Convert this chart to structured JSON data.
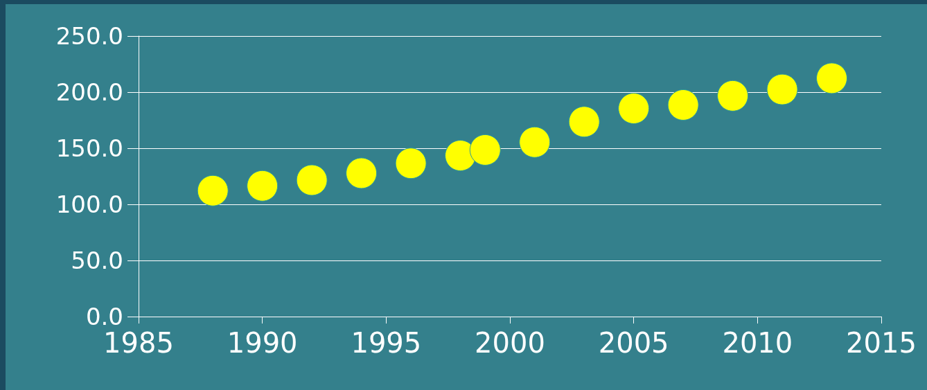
{
  "chart_data": {
    "type": "scatter",
    "x": [
      1988,
      1990,
      1992,
      1994,
      1996,
      1998,
      1999,
      2001,
      2003,
      2005,
      2007,
      2009,
      2011,
      2013
    ],
    "series": [
      {
        "color": "#ffff00",
        "values": [
          112.2,
          116.5,
          121.6,
          127.8,
          136.6,
          143.5,
          148.5,
          155.4,
          173.6,
          185.5,
          188.6,
          196.7,
          202.4,
          212.4
        ]
      }
    ],
    "xlim": [
      1985,
      2015
    ],
    "xticks": [
      1985,
      1990,
      1995,
      2000,
      2005,
      2010,
      2015
    ],
    "ylim": [
      0,
      250
    ],
    "yticks": [
      {
        "value": 0,
        "label": "0.0"
      },
      {
        "value": 50,
        "label": "50.0"
      },
      {
        "value": 100,
        "label": "100.0"
      },
      {
        "value": 150,
        "label": "150.0"
      },
      {
        "value": 200,
        "label": "200.0"
      },
      {
        "value": 250,
        "label": "250.0"
      }
    ],
    "grid": "y",
    "marker": "circle"
  }
}
